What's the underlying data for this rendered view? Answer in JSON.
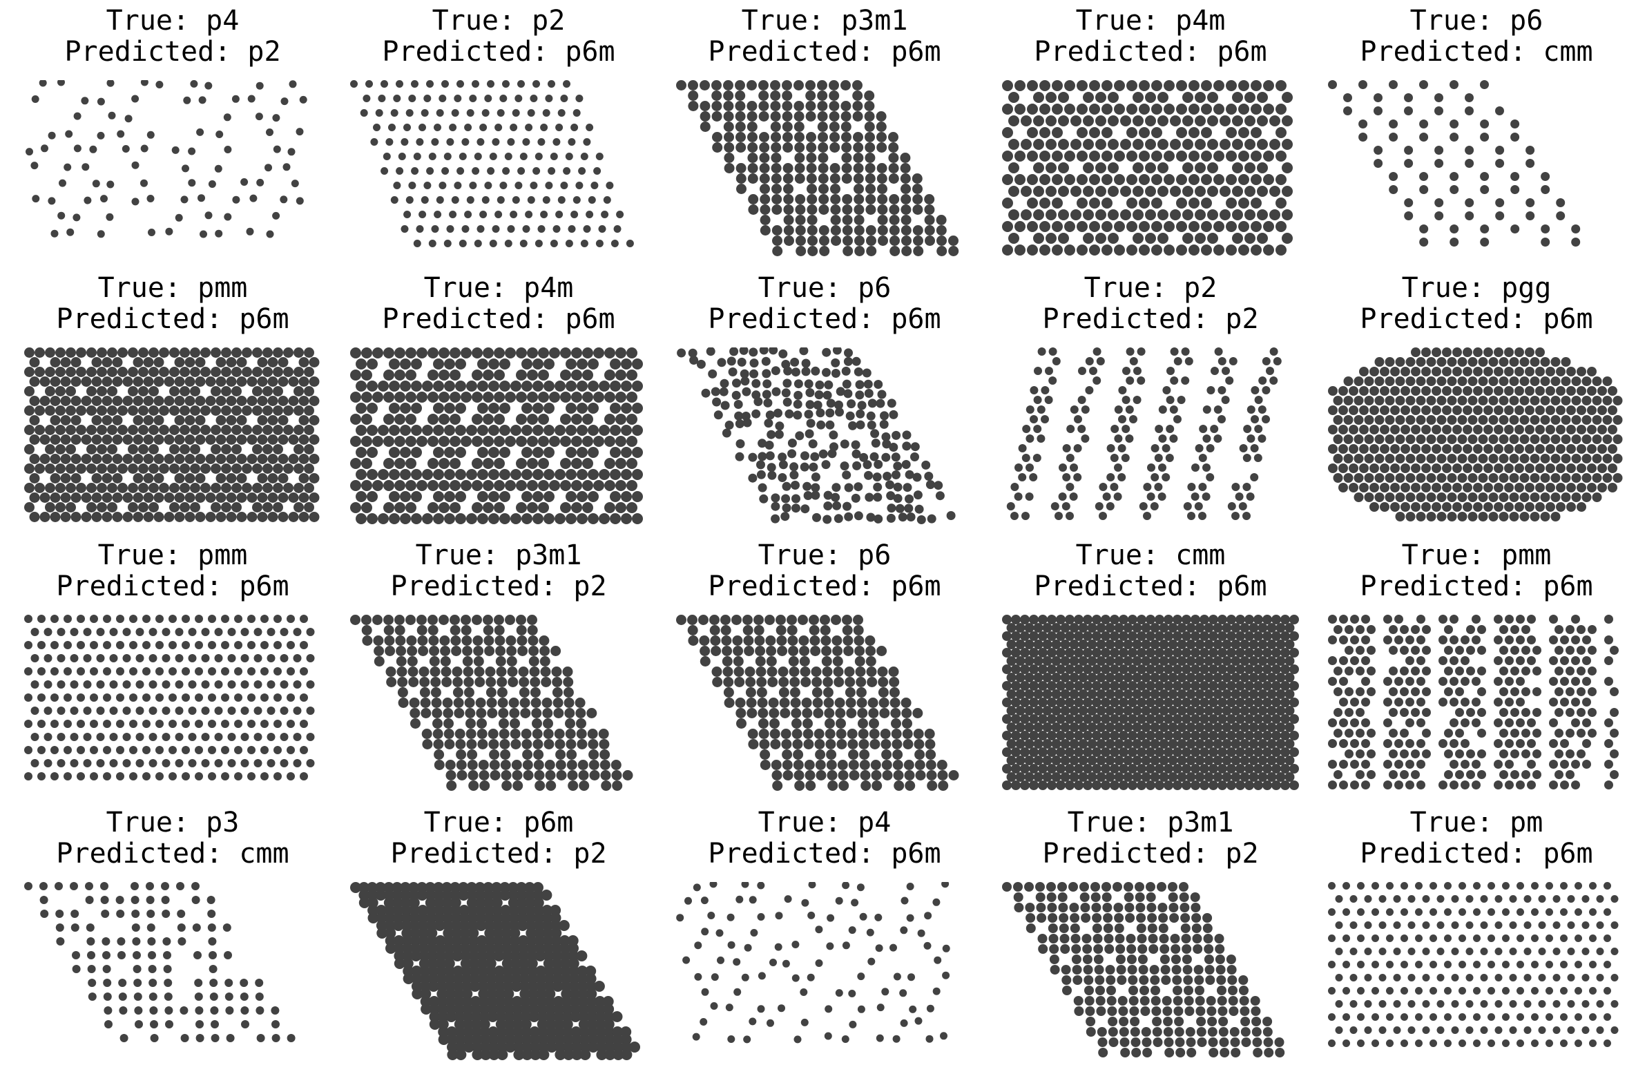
{
  "figure": {
    "dot_color": "#424242",
    "background": "#ffffff",
    "panels": [
      {
        "true_label": "True: p4",
        "predicted_label": "Predicted: p2",
        "lattice": "square"
      },
      {
        "true_label": "True: p2",
        "predicted_label": "Predicted: p6m",
        "lattice": "oblique"
      },
      {
        "true_label": "True: p3m1",
        "predicted_label": "Predicted: p6m",
        "lattice": "hexagonal"
      },
      {
        "true_label": "True: p4m",
        "predicted_label": "Predicted: p6m",
        "lattice": "square"
      },
      {
        "true_label": "True: p6",
        "predicted_label": "Predicted: cmm",
        "lattice": "hexagonal"
      },
      {
        "true_label": "True: pmm",
        "predicted_label": "Predicted: p6m",
        "lattice": "rectangular"
      },
      {
        "true_label": "True: p4m",
        "predicted_label": "Predicted: p6m",
        "lattice": "square"
      },
      {
        "true_label": "True: p6",
        "predicted_label": "Predicted: p6m",
        "lattice": "hexagonal"
      },
      {
        "true_label": "True: p2",
        "predicted_label": "Predicted: p2",
        "lattice": "oblique"
      },
      {
        "true_label": "True: pgg",
        "predicted_label": "Predicted: p6m",
        "lattice": "rectangular"
      },
      {
        "true_label": "True: pmm",
        "predicted_label": "Predicted: p6m",
        "lattice": "rectangular"
      },
      {
        "true_label": "True: p3m1",
        "predicted_label": "Predicted: p2",
        "lattice": "hexagonal"
      },
      {
        "true_label": "True: p6",
        "predicted_label": "Predicted: p6m",
        "lattice": "hexagonal"
      },
      {
        "true_label": "True: cmm",
        "predicted_label": "Predicted: p6m",
        "lattice": "rectangular"
      },
      {
        "true_label": "True: pmm",
        "predicted_label": "Predicted: p6m",
        "lattice": "rectangular"
      },
      {
        "true_label": "True: p3",
        "predicted_label": "Predicted: cmm",
        "lattice": "hexagonal"
      },
      {
        "true_label": "True: p6m",
        "predicted_label": "Predicted: p2",
        "lattice": "hexagonal"
      },
      {
        "true_label": "True: p4",
        "predicted_label": "Predicted: p6m",
        "lattice": "square"
      },
      {
        "true_label": "True: p3m1",
        "predicted_label": "Predicted: p2",
        "lattice": "hexagonal"
      },
      {
        "true_label": "True: pm",
        "predicted_label": "Predicted: p6m",
        "lattice": "rectangular"
      }
    ]
  }
}
